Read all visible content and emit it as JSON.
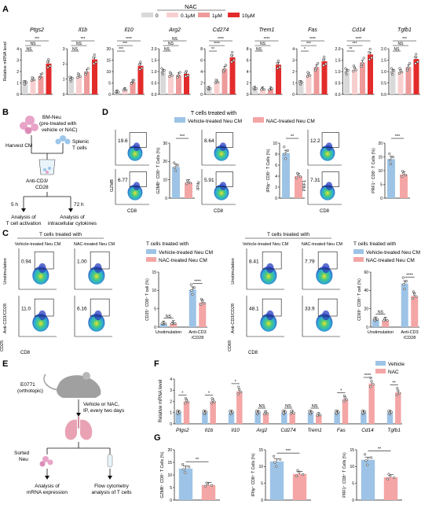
{
  "panels": {
    "A": "A",
    "B": "B",
    "C": "C",
    "D": "D",
    "E": "E",
    "F": "F",
    "G": "G"
  },
  "colors": {
    "c0": "#d9d9d9",
    "c01": "#f8cfcf",
    "c1": "#ee9a9a",
    "c10": "#e32b2b",
    "vehicle": "#9dc3e6",
    "nac": "#f4a5a5",
    "flowlo": "#2a3fbf",
    "flowmid": "#22b8c8",
    "flowhi": "#e4e830"
  },
  "panelA": {
    "legend_title": "NAC",
    "legend": [
      "0",
      "0.1μM",
      "1μM",
      "10μM"
    ],
    "ylabel": "Relative mRNA level",
    "genes": [
      {
        "name": "Ptgs2",
        "ylim": [
          0,
          4
        ],
        "ticks": [
          "0",
          "1",
          "2",
          "3",
          "4"
        ],
        "means": [
          1.0,
          1.3,
          1.6,
          2.7
        ],
        "sig": [
          "NS",
          "NS",
          "***"
        ]
      },
      {
        "name": "Il1b",
        "ylim": [
          0,
          3
        ],
        "ticks": [
          "0",
          "1",
          "2",
          "3"
        ],
        "means": [
          1.0,
          1.2,
          1.5,
          2.3
        ],
        "sig": [
          "NS",
          "NS",
          "***"
        ]
      },
      {
        "name": "Il10",
        "ylim": [
          0,
          20
        ],
        "ticks": [
          "0",
          "5",
          "10",
          "15",
          "20"
        ],
        "means": [
          1.0,
          2.0,
          5.5,
          12.5
        ],
        "sig": [
          "***",
          "***",
          "****"
        ]
      },
      {
        "name": "Arg2",
        "ylim": [
          0,
          2.0
        ],
        "ticks": [
          "0.0",
          "0.5",
          "1.0",
          "1.5",
          "2.0"
        ],
        "means": [
          1.0,
          0.85,
          0.85,
          0.9
        ],
        "sig": [
          "NS",
          "NS",
          "NS"
        ]
      },
      {
        "name": "Cd274",
        "ylim": [
          0,
          8
        ],
        "ticks": [
          "0",
          "2",
          "4",
          "6",
          "8"
        ],
        "means": [
          1.0,
          2.2,
          4.5,
          6.5
        ],
        "sig": [
          "**",
          "****",
          "****"
        ]
      },
      {
        "name": "Trem1",
        "ylim": [
          0,
          8
        ],
        "ticks": [
          "0",
          "2",
          "4",
          "6",
          "8"
        ],
        "means": [
          1.0,
          0.9,
          0.9,
          5.2
        ],
        "sig": [
          "NS",
          "NS",
          "****"
        ]
      },
      {
        "name": "Fas",
        "ylim": [
          0,
          4
        ],
        "ticks": [
          "0",
          "1",
          "2",
          "3",
          "4"
        ],
        "means": [
          1.0,
          1.7,
          2.4,
          2.9
        ],
        "sig": [
          "*",
          "***",
          "****"
        ]
      },
      {
        "name": "Cd14",
        "ylim": [
          0,
          2.0
        ],
        "ticks": [
          "0.0",
          "0.5",
          "1.0",
          "1.5",
          "2.0"
        ],
        "means": [
          1.0,
          1.1,
          1.4,
          1.75
        ],
        "sig": [
          "**",
          "***",
          "****"
        ]
      },
      {
        "name": "Tgfb1",
        "ylim": [
          0,
          2.0
        ],
        "ticks": [
          "0.0",
          "0.5",
          "1.0",
          "1.5",
          "2.0"
        ],
        "means": [
          1.0,
          1.0,
          1.2,
          1.55
        ],
        "sig": [
          "NS",
          "NS",
          "***"
        ]
      }
    ]
  },
  "panelB": {
    "bmneu": "BM-Neu",
    "pre1": "(pre-treated with",
    "pre2": "vehicle or NAC)",
    "harvest": "Harvest CM",
    "splenic1": "Splenic",
    "splenic2": "T cells",
    "anti1": "Anti-CD3/",
    "anti2": "CD28",
    "t5": "5 h",
    "t72": "72 h",
    "act1": "Analysis of",
    "act2": "T cell activation",
    "cyt1": "Analysis of",
    "cyt2": "intracellular cytokines"
  },
  "panelD": {
    "header": "T cells treated with",
    "legend": [
      "Vehicle-treated Neu CM",
      "NAC-treated Neu CM"
    ],
    "flows": [
      {
        "ylabel": "GZMB",
        "xlabel": "CD8",
        "top": "19.6",
        "bottom": "6.77"
      },
      {
        "ylabel": "IFNγ",
        "xlabel": "CD8",
        "top": "8.64",
        "bottom": "5.91"
      },
      {
        "ylabel": "PRF1",
        "xlabel": "CD8",
        "top": "12.2",
        "bottom": "7.31"
      }
    ],
    "bars": [
      {
        "ylabel": "GZMB⁺ CD8⁺ T Cells (%)",
        "ylim": [
          0,
          30
        ],
        "ticks": [
          "0",
          "10",
          "20",
          "30"
        ],
        "values": [
          17.0,
          8.5
        ],
        "sig": "***"
      },
      {
        "ylabel": "IFNγ⁺ CD8⁺ T Cells (%)",
        "ylim": [
          0,
          10
        ],
        "ticks": [
          "0",
          "2",
          "4",
          "6",
          "8",
          "10"
        ],
        "values": [
          8.2,
          4.0
        ],
        "sig": "**"
      },
      {
        "ylabel": "PRF1⁺ CD8⁺ T Cells (%)",
        "ylim": [
          0,
          20
        ],
        "ticks": [
          "0",
          "5",
          "10",
          "15",
          "20"
        ],
        "values": [
          14.2,
          8.6
        ],
        "sig": "***"
      }
    ]
  },
  "panelC": {
    "header": "T cells treated with",
    "cols": [
      "Vehicle-treated Neu CM",
      "NAC-treated Neu CM"
    ],
    "rows": [
      "Unstimulation",
      "Anti-CD3/CD28"
    ],
    "left": {
      "ylabel": "CD25",
      "xlabel": "CD8",
      "vals": [
        "0.94",
        "1.00",
        "11.0",
        "6.16"
      ]
    },
    "right": {
      "ylabel": "CD69",
      "xlabel": "CD8",
      "vals": [
        "8.41",
        "7.79",
        "48.1",
        "33.9"
      ]
    },
    "legend_header": "T cells treated with",
    "legend": [
      "Vehicle-treated Neu CM",
      "NAC-treated Neu CM"
    ],
    "bar_left": {
      "ylabel": "CD25⁺ CD8⁺ T cell (%)",
      "ylim": [
        0,
        15
      ],
      "ticks": [
        "0",
        "5",
        "10",
        "15"
      ],
      "cats": [
        "Unstimulation",
        "Anti-CD3",
        "/CD28"
      ],
      "values": [
        [
          0.9,
          1.0
        ],
        [
          10.2,
          6.7
        ]
      ],
      "sig": [
        "NS",
        "****"
      ]
    },
    "bar_right": {
      "ylabel": "CD69⁺ CD8⁺ T cell (%)",
      "ylim": [
        0,
        60
      ],
      "ticks": [
        "0",
        "20",
        "40",
        "60"
      ],
      "cats": [
        "Unstimulation",
        "Anti-CD3",
        "/CD28"
      ],
      "values": [
        [
          8.0,
          7.6
        ],
        [
          47.5,
          34.0
        ]
      ],
      "sig": [
        "NS",
        "****"
      ]
    }
  },
  "panelE": {
    "tumor1": "E0771",
    "tumor2": "(orthotopic)",
    "treat1": "Vehicle or NAC,",
    "treat2": "IP, every two days",
    "sorted1": "Sorted",
    "sorted2": "Neu",
    "mrna1": "Analysis of",
    "mrna2": "mRNA expression",
    "flow1": "Flow cytometry",
    "flow2": "analysis of T cells"
  },
  "panelF": {
    "ylabel": "Relative mRNA level",
    "legend": [
      "Vehicle",
      "NAC"
    ],
    "ylim": [
      0,
      4
    ],
    "ticks": [
      "0",
      "1",
      "2",
      "3",
      "4"
    ],
    "genes": [
      "Ptgs2",
      "Il1b",
      "Il10",
      "Arg2",
      "Cd274",
      "Trem1",
      "Fas",
      "Cd14",
      "Tgfb1"
    ],
    "vehicle": [
      1.0,
      1.0,
      1.0,
      1.0,
      1.0,
      1.0,
      1.0,
      1.0,
      1.0
    ],
    "nac": [
      2.0,
      2.0,
      2.9,
      0.95,
      1.0,
      0.8,
      2.2,
      3.6,
      2.8
    ],
    "sig": [
      "*",
      "*",
      "*",
      "NS",
      "NS",
      "NS",
      "*",
      "****",
      "**"
    ]
  },
  "panelG": {
    "bars": [
      {
        "ylabel": "GZMB⁺ CD8⁺ T Cells (%)",
        "ylim": [
          0,
          20
        ],
        "ticks": [
          "0",
          "5",
          "10",
          "15",
          "20"
        ],
        "values": [
          12.5,
          6.0
        ],
        "sig": "**"
      },
      {
        "ylabel": "IFNγ⁺ CD8⁺ T Cells (%)",
        "ylim": [
          0,
          15
        ],
        "ticks": [
          "0",
          "5",
          "10",
          "15"
        ],
        "values": [
          11.5,
          7.8
        ],
        "sig": "***"
      },
      {
        "ylabel": "PRF1⁺ CD8⁺ T Cells (%)",
        "ylim": [
          0,
          15
        ],
        "ticks": [
          "0",
          "5",
          "10",
          "15"
        ],
        "values": [
          12.0,
          6.8
        ],
        "sig": "**"
      }
    ]
  }
}
